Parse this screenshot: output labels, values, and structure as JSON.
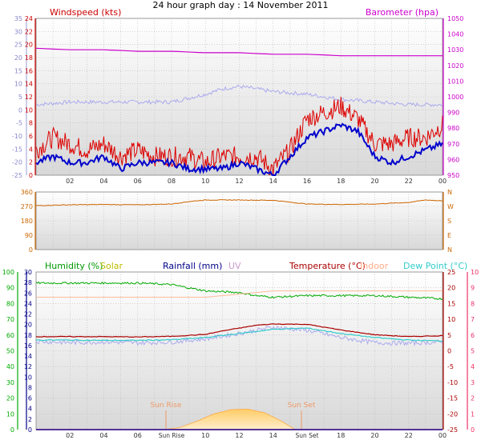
{
  "title": "24 hour graph day : 14 November 2011",
  "colors": {
    "wind": "#dd0000",
    "gust": "#0000cc",
    "baro": "#cc00cc",
    "temp_axis": "#ee3366",
    "humidity": "#00aa00",
    "solar": "#cccc00",
    "rainfall": "#000088",
    "uv": "#cc99cc",
    "temperature": "#aa0000",
    "indoor": "#ffbb99",
    "dewpoint": "#33cccc",
    "winddir": "#cc6600",
    "chill": "#aaaaee",
    "sun": "#ffcc66",
    "grid": "#bbbbbb"
  },
  "x_tick_labels": [
    "02",
    "04",
    "06",
    "08",
    "10",
    "12",
    "14",
    "16",
    "18",
    "20",
    "22",
    "00"
  ],
  "panel3_x_tick_labels": [
    "02",
    "04",
    "06",
    "Sun Rise",
    "10",
    "12",
    "14",
    "Sun Set",
    "18",
    "20",
    "22",
    "00"
  ],
  "chart_data": [
    {
      "type": "line",
      "title": "24 hour graph day : 14 November 2011",
      "legend": [
        "Windspeed (kts)",
        "Barometer (hpa)"
      ],
      "axes": {
        "left_outer": {
          "label": "",
          "ticks": [
            "35",
            "30",
            "25",
            "20",
            "15",
            "10",
            "5",
            "0",
            "-5",
            "-10",
            "-15",
            "-20",
            "-25"
          ],
          "ylim": [
            -25,
            35
          ]
        },
        "left_inner": {
          "label": "Windspeed (kts)",
          "ticks": [
            "24",
            "22",
            "20",
            "18",
            "16",
            "14",
            "12",
            "10",
            "8",
            "6",
            "4",
            "2",
            "0"
          ],
          "ylim": [
            0,
            25
          ]
        },
        "right": {
          "label": "Barometer (hpa)",
          "ticks": [
            "1050",
            "1040",
            "1030",
            "1020",
            "1010",
            "1000",
            "990",
            "980",
            "970",
            "960",
            "950"
          ],
          "ylim": [
            947,
            1052
          ]
        }
      },
      "series": [
        {
          "name": "Windspeed (kts)",
          "axis": "left_inner",
          "x": [
            0,
            1,
            2,
            3,
            4,
            5,
            6,
            7,
            8,
            9,
            10,
            11,
            12,
            13,
            14,
            15,
            16,
            17,
            18,
            19,
            20,
            21,
            22,
            23,
            24
          ],
          "values": [
            4,
            6,
            5,
            4,
            5,
            3,
            4,
            3,
            3,
            3,
            2,
            3,
            3,
            3,
            1,
            4,
            9,
            10,
            11,
            9,
            5,
            5,
            6,
            6,
            8
          ]
        },
        {
          "name": "Gust",
          "axis": "left_inner",
          "x": [
            0,
            1,
            2,
            3,
            4,
            5,
            6,
            7,
            8,
            9,
            10,
            11,
            12,
            13,
            14,
            15,
            16,
            17,
            18,
            19,
            20,
            21,
            22,
            23,
            24
          ],
          "values": [
            2,
            3,
            2,
            2,
            3,
            1,
            2,
            2,
            2,
            1,
            1,
            1,
            2,
            1,
            0,
            3,
            6,
            7,
            8,
            7,
            3,
            2,
            3,
            4,
            5
          ]
        },
        {
          "name": "Wind Chill",
          "axis": "left_outer",
          "x": [
            0,
            2,
            4,
            6,
            8,
            10,
            11,
            12,
            13,
            14,
            16,
            18,
            20,
            22,
            24
          ],
          "values": [
            2,
            3,
            3,
            3,
            3,
            6,
            8,
            9,
            8,
            7,
            6,
            4,
            3,
            2,
            2
          ]
        },
        {
          "name": "Barometer (hpa)",
          "axis": "right",
          "x": [
            0,
            2,
            4,
            6,
            8,
            10,
            12,
            14,
            16,
            18,
            20,
            22,
            24
          ],
          "values": [
            1032,
            1031,
            1031,
            1030,
            1030,
            1029,
            1029,
            1028,
            1028,
            1027,
            1027,
            1027,
            1027
          ]
        }
      ]
    },
    {
      "type": "line",
      "legend": [],
      "axes": {
        "left": {
          "label": "",
          "ticks": [
            "360",
            "270",
            "180",
            "90",
            "0"
          ],
          "ylim": [
            0,
            360
          ]
        },
        "right": {
          "label": "",
          "ticks": [
            "N",
            "W",
            "S",
            "E",
            "N"
          ]
        }
      },
      "series": [
        {
          "name": "Wind direction",
          "x": [
            0,
            2,
            4,
            6,
            8,
            9,
            10,
            12,
            14,
            16,
            18,
            20,
            22,
            23,
            24
          ],
          "values": [
            275,
            280,
            282,
            280,
            285,
            300,
            310,
            310,
            308,
            285,
            282,
            285,
            295,
            310,
            305
          ]
        }
      ]
    },
    {
      "type": "line",
      "legend": [
        "Humidity (%)",
        "Solar",
        "Rainfall (mm)",
        "UV",
        "Temperature (°C)",
        "Indoor",
        "Dew Point (°C)"
      ],
      "axes": {
        "left_outer": {
          "label": "Humidity (%)",
          "ticks": [
            "100",
            "90",
            "80",
            "70",
            "60",
            "50",
            "40",
            "30",
            "20",
            "10",
            "0"
          ],
          "ylim": [
            0,
            100
          ]
        },
        "left_inner": {
          "label": "Rainfall (mm)",
          "ticks": [
            "30",
            "28",
            "26",
            "24",
            "22",
            "20",
            "18",
            "16",
            "14",
            "12",
            "10",
            "8",
            "6",
            "4",
            "2",
            "0"
          ],
          "ylim": [
            0,
            30
          ]
        },
        "right_inner": {
          "label": "Temperature (°C)",
          "ticks": [
            "25",
            "20",
            "15",
            "10",
            "5",
            "0",
            "-5",
            "-10",
            "-15",
            "-20",
            "-25"
          ],
          "ylim": [
            -25,
            25
          ]
        },
        "right_outer": {
          "label": "UV",
          "ticks": [
            "10",
            "9",
            "8",
            "7",
            "6",
            "5",
            "4",
            "3",
            "2",
            "1",
            "0"
          ],
          "ylim": [
            0,
            10
          ]
        }
      },
      "annotations": [
        "Sun Rise",
        "Sun Set"
      ],
      "series": [
        {
          "name": "Humidity (%)",
          "axis": "left_outer",
          "x": [
            0,
            2,
            4,
            6,
            8,
            9,
            10,
            12,
            13,
            14,
            16,
            18,
            20,
            22,
            24
          ],
          "values": [
            93,
            93,
            93,
            93,
            92,
            90,
            88,
            87,
            85,
            84,
            85,
            85,
            85,
            84,
            83
          ]
        },
        {
          "name": "Indoor",
          "axis": "right_inner",
          "x": [
            0,
            2,
            4,
            6,
            8,
            10,
            12,
            14,
            16,
            18,
            20,
            22,
            24
          ],
          "values": [
            17,
            17,
            17,
            17,
            17,
            17,
            18,
            19,
            19,
            19,
            19,
            19,
            19
          ]
        },
        {
          "name": "Temperature (°C)",
          "axis": "right_inner",
          "x": [
            0,
            2,
            4,
            6,
            8,
            10,
            11,
            12,
            13,
            14,
            16,
            18,
            20,
            22,
            24
          ],
          "values": [
            4.5,
            4.5,
            4.5,
            4.4,
            4.6,
            5.2,
            6.3,
            7.2,
            8.1,
            8.5,
            8.4,
            6.6,
            5.1,
            4.5,
            4.8
          ]
        },
        {
          "name": "Dew Point (°C)",
          "axis": "right_inner",
          "x": [
            0,
            2,
            4,
            6,
            8,
            10,
            12,
            14,
            16,
            18,
            20,
            22,
            24
          ],
          "values": [
            3.4,
            3.4,
            3.3,
            3.3,
            3.5,
            4.2,
            5.5,
            6.8,
            7.2,
            5.5,
            4.2,
            3.4,
            3.1
          ]
        },
        {
          "name": "Wind Chill",
          "axis": "right_inner",
          "x": [
            0,
            2,
            4,
            6,
            8,
            10,
            12,
            14,
            16,
            18,
            20,
            22,
            24
          ],
          "values": [
            3.0,
            2.6,
            2.8,
            2.5,
            2.8,
            3.8,
            5.5,
            7.5,
            6.5,
            4.2,
            2.6,
            2.4,
            2.8
          ]
        },
        {
          "name": "Solar",
          "axis": "left_inner",
          "x": [
            7.5,
            8.5,
            9.5,
            10.5,
            11.5,
            12.5,
            13.5,
            14.5,
            15.3
          ],
          "values": [
            0,
            0.4,
            1.6,
            3.0,
            3.8,
            3.9,
            3.2,
            1.6,
            0
          ]
        },
        {
          "name": "Rainfall (mm)",
          "axis": "left_inner",
          "x": [
            0,
            24
          ],
          "values": [
            0,
            0
          ]
        },
        {
          "name": "UV",
          "axis": "right_outer",
          "x": [
            0,
            24
          ],
          "values": [
            0,
            0
          ]
        }
      ]
    }
  ]
}
